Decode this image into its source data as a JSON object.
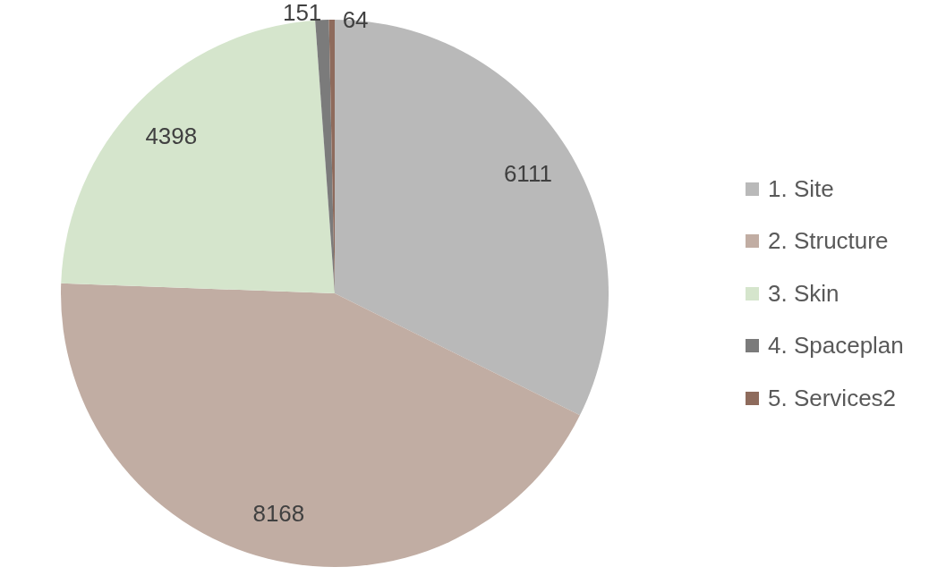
{
  "chart_data": {
    "type": "pie",
    "categories": [
      "1. Site",
      "2. Structure",
      "3. Skin",
      "4. Spaceplan",
      "5. Services2"
    ],
    "values": [
      6111,
      8168,
      4398,
      151,
      64
    ],
    "colors": [
      "#b9b9b9",
      "#c1ada3",
      "#d5e5cc",
      "#7b7b7b",
      "#8e6b5c"
    ],
    "data_labels": true,
    "legend": "right"
  }
}
